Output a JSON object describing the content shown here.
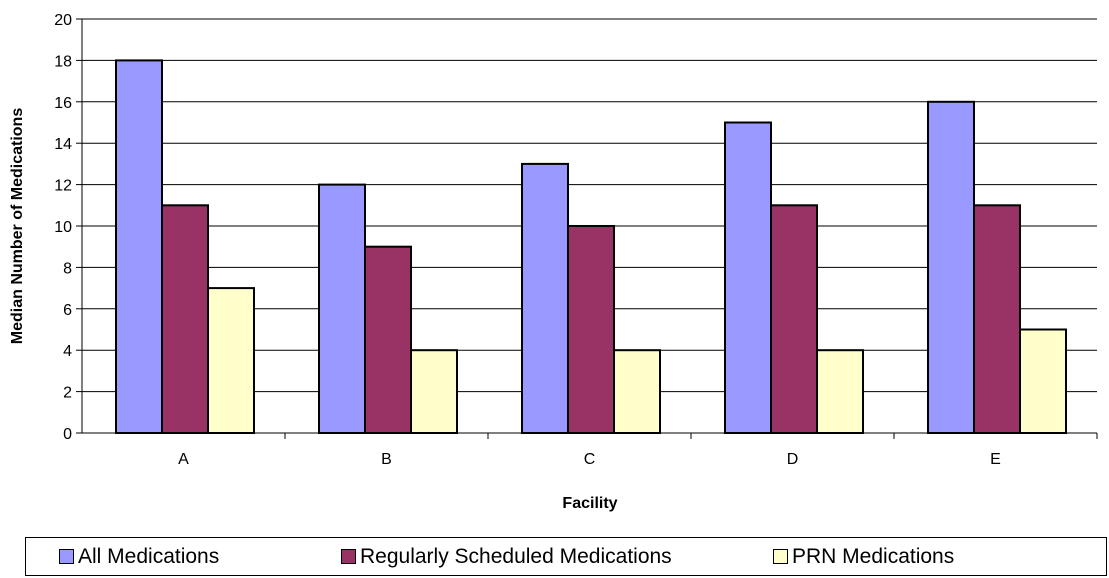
{
  "chart_data": {
    "type": "bar",
    "categories": [
      "A",
      "B",
      "C",
      "D",
      "E"
    ],
    "series": [
      {
        "name": "All Medications",
        "values": [
          18,
          12,
          13,
          15,
          16
        ],
        "color": "#9999ff"
      },
      {
        "name": "Regularly Scheduled Medications",
        "values": [
          11,
          9,
          10,
          11,
          11
        ],
        "color": "#993366"
      },
      {
        "name": "PRN Medications",
        "values": [
          7,
          4,
          4,
          4,
          5
        ],
        "color": "#ffffcc"
      }
    ],
    "title": "",
    "xlabel": "Facility",
    "ylabel": "Median Number of Medications",
    "ylim": [
      0,
      20
    ],
    "yticks": [
      "0",
      "2",
      "4",
      "6",
      "8",
      "10",
      "12",
      "14",
      "16",
      "18",
      "20"
    ],
    "grid": true,
    "legend_position": "bottom"
  }
}
